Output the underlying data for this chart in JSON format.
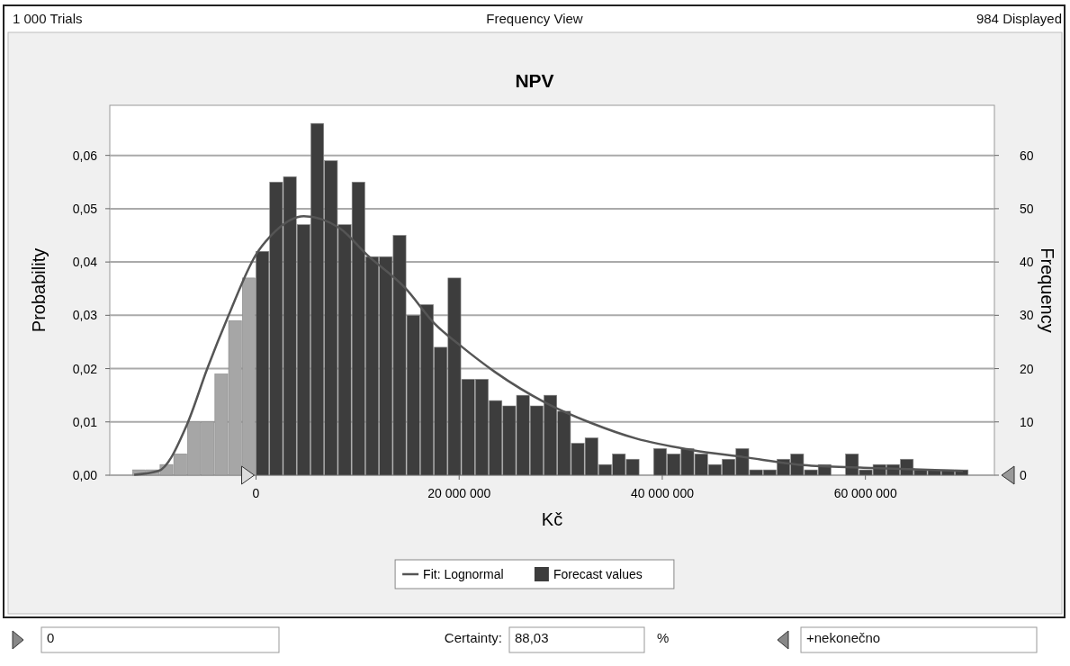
{
  "chart_data": {
    "type": "histogram",
    "title": "NPV",
    "xlabel": "Kč",
    "ylabel": "Probability",
    "y2label": "Frequency",
    "annotations": [
      "1 000 Trials",
      "Frequency View",
      "984 Displayed",
      "0",
      "Certainty:",
      "88,03",
      "%",
      "+nekonečno"
    ],
    "xlim": [
      -14400000,
      72700000
    ],
    "xticks": [
      {
        "value": 0,
        "label": "0"
      },
      {
        "value": 20000000,
        "label": "20 000 000"
      },
      {
        "value": 40000000,
        "label": "40 000 000"
      },
      {
        "value": 60000000,
        "label": "60 000 000"
      }
    ],
    "ylim": [
      0,
      0.0694
    ],
    "yticks": [
      {
        "value": 0,
        "label": "0,00"
      },
      {
        "value": 0.01,
        "label": "0,01"
      },
      {
        "value": 0.02,
        "label": "0,02"
      },
      {
        "value": 0.03,
        "label": "0,03"
      },
      {
        "value": 0.04,
        "label": "0,04"
      },
      {
        "value": 0.05,
        "label": "0,05"
      },
      {
        "value": 0.06,
        "label": "0,06"
      }
    ],
    "y2lim": [
      0,
      69.4
    ],
    "y2ticks": [
      0,
      10,
      20,
      30,
      40,
      50,
      60
    ],
    "grid": "y",
    "legend": "bottom",
    "series": [
      {
        "name": "Forecast values",
        "axis": "y2",
        "color": "#3d3d3d",
        "bins": [
          -12150000,
          -10800000,
          -9450000,
          -8100000,
          -6750000,
          -5400000,
          -4050000,
          -2700000,
          -1350000,
          0,
          1350000,
          2700000,
          4050000,
          5400000,
          6750000,
          8100000,
          9450000,
          10800000,
          12150000,
          13500000,
          14850000,
          16200000,
          17550000,
          18900000,
          20250000,
          21600000,
          22950000,
          24300000,
          25650000,
          27000000,
          28350000,
          29700000,
          31050000,
          32400000,
          33750000,
          35100000,
          36450000,
          37800000,
          39150000,
          40500000,
          41850000,
          43200000,
          44550000,
          45900000,
          47250000,
          48600000,
          49950000,
          51300000,
          52650000,
          54000000,
          55350000,
          56700000,
          58050000,
          59400000,
          60750000,
          62100000,
          63450000,
          64800000,
          66150000,
          67500000,
          68850000,
          70200000
        ],
        "values": [
          1,
          1,
          2,
          4,
          10,
          10,
          19,
          29,
          37,
          42,
          55,
          56,
          47,
          66,
          59,
          47,
          55,
          41,
          41,
          45,
          30,
          32,
          24,
          37,
          18,
          18,
          14,
          13,
          15,
          13,
          15,
          12,
          6,
          7,
          2,
          4,
          3,
          0,
          5,
          4,
          5,
          4,
          2,
          3,
          5,
          1,
          1,
          3,
          4,
          1,
          2,
          0,
          4,
          1,
          2,
          2,
          3,
          1,
          1,
          1,
          1
        ],
        "colors": [
          "#a6a6a6",
          "#a6a6a6",
          "#a6a6a6",
          "#a6a6a6",
          "#a6a6a6",
          "#a6a6a6",
          "#a6a6a6",
          "#a6a6a6",
          "#a6a6a6",
          "#3d3d3d",
          "#3d3d3d",
          "#3d3d3d",
          "#3d3d3d",
          "#3d3d3d",
          "#3d3d3d",
          "#3d3d3d",
          "#3d3d3d",
          "#3d3d3d",
          "#3d3d3d",
          "#3d3d3d",
          "#3d3d3d",
          "#3d3d3d",
          "#3d3d3d",
          "#3d3d3d",
          "#3d3d3d",
          "#3d3d3d",
          "#3d3d3d",
          "#3d3d3d",
          "#3d3d3d",
          "#3d3d3d",
          "#3d3d3d",
          "#3d3d3d",
          "#3d3d3d",
          "#3d3d3d",
          "#3d3d3d",
          "#3d3d3d",
          "#3d3d3d",
          "#3d3d3d",
          "#3d3d3d",
          "#3d3d3d",
          "#3d3d3d",
          "#3d3d3d",
          "#3d3d3d",
          "#3d3d3d",
          "#3d3d3d",
          "#3d3d3d",
          "#3d3d3d",
          "#3d3d3d",
          "#3d3d3d",
          "#3d3d3d",
          "#3d3d3d",
          "#3d3d3d",
          "#3d3d3d",
          "#3d3d3d",
          "#3d3d3d",
          "#3d3d3d",
          "#3d3d3d",
          "#3d3d3d",
          "#3d3d3d",
          "#3d3d3d",
          "#3d3d3d"
        ]
      },
      {
        "type": "line",
        "name": "Fit: Lognormal",
        "color": "#555555",
        "x": [
          -12000000,
          -9600000,
          -6800000,
          -4800000,
          -2700000,
          0,
          1400000,
          4700000,
          8200000,
          10900000,
          14700000,
          17600000,
          20000000,
          23500000,
          28600000,
          33000000,
          37400000,
          43000000,
          48000000,
          53900000,
          59800000,
          69600000
        ],
        "values": [
          0.0001,
          0.0008,
          0.0095,
          0.02,
          0.03,
          0.0414,
          0.0448,
          0.0486,
          0.0464,
          0.0414,
          0.0351,
          0.0284,
          0.0245,
          0.0194,
          0.0135,
          0.0098,
          0.0069,
          0.0047,
          0.0034,
          0.0019,
          0.0014,
          0.0008
        ]
      }
    ]
  }
}
